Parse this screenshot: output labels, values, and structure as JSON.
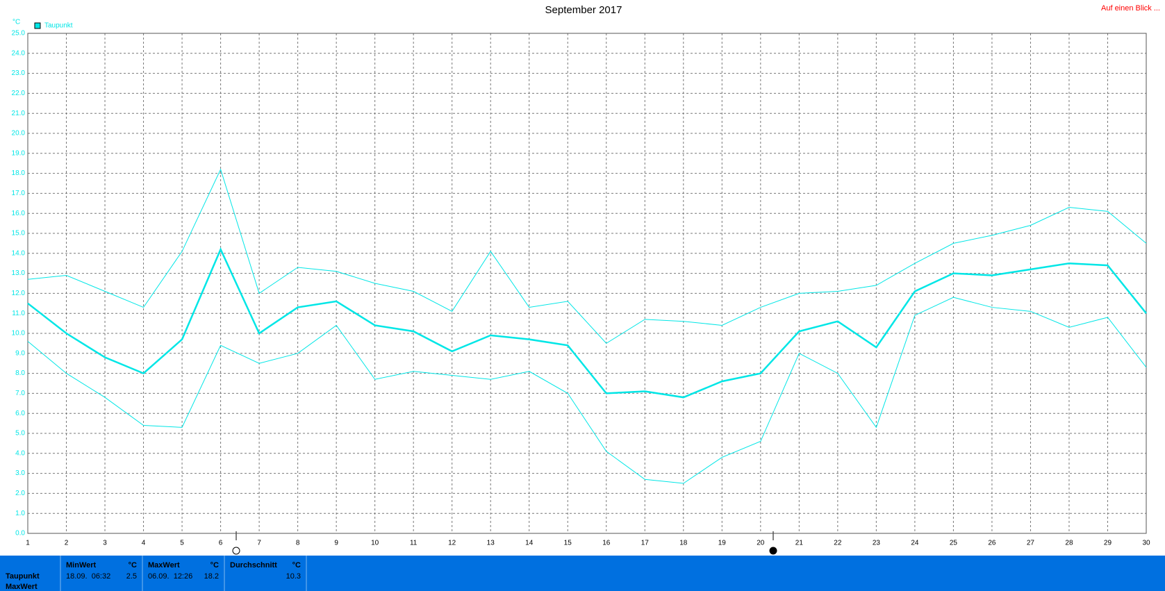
{
  "chart_data": {
    "type": "line",
    "title": "September 2017",
    "y_unit": "°C",
    "link": "Auf einen Blick ...",
    "x": [
      1,
      2,
      3,
      4,
      5,
      6,
      7,
      8,
      9,
      10,
      11,
      12,
      13,
      14,
      15,
      16,
      17,
      18,
      19,
      20,
      21,
      22,
      23,
      24,
      25,
      26,
      27,
      28,
      29,
      30
    ],
    "xlim": [
      1,
      30
    ],
    "xticks": [
      1,
      2,
      3,
      4,
      5,
      6,
      7,
      8,
      9,
      10,
      11,
      12,
      13,
      14,
      15,
      16,
      17,
      18,
      19,
      20,
      21,
      22,
      23,
      24,
      25,
      26,
      27,
      28,
      29,
      30
    ],
    "ylim": [
      0,
      25
    ],
    "yticks": [
      {
        "value": 0,
        "label": "0.0"
      },
      {
        "value": 1,
        "label": "1.0"
      },
      {
        "value": 2,
        "label": "2.0"
      },
      {
        "value": 3,
        "label": "3.0"
      },
      {
        "value": 4,
        "label": "4.0"
      },
      {
        "value": 5,
        "label": "5.0"
      },
      {
        "value": 6,
        "label": "6.0"
      },
      {
        "value": 7,
        "label": "7.0"
      },
      {
        "value": 8,
        "label": "8.0"
      },
      {
        "value": 9,
        "label": "9.0"
      },
      {
        "value": 10,
        "label": "10.0"
      },
      {
        "value": 11,
        "label": "11.0"
      },
      {
        "value": 12,
        "label": "12.0"
      },
      {
        "value": 13,
        "label": "13.0"
      },
      {
        "value": 14,
        "label": "14.0"
      },
      {
        "value": 15,
        "label": "15.0"
      },
      {
        "value": 16,
        "label": "16.0"
      },
      {
        "value": 17,
        "label": "17.0"
      },
      {
        "value": 18,
        "label": "18.0"
      },
      {
        "value": 19,
        "label": "19.0"
      },
      {
        "value": 20,
        "label": "20.0"
      },
      {
        "value": 21,
        "label": "21.0"
      },
      {
        "value": 22,
        "label": "22.0"
      },
      {
        "value": 23,
        "label": "23.0"
      },
      {
        "value": 24,
        "label": "24.0"
      },
      {
        "value": 25,
        "label": "25.0"
      }
    ],
    "grid": true,
    "series": [
      {
        "name": "Taupunkt",
        "color": "#00e6e6",
        "width": 2.5,
        "values": [
          11.5,
          10.0,
          8.8,
          8.0,
          9.7,
          14.2,
          10.0,
          11.3,
          11.6,
          10.4,
          10.1,
          9.1,
          9.9,
          9.7,
          9.4,
          7.0,
          7.1,
          6.8,
          7.6,
          8.0,
          10.1,
          10.6,
          9.3,
          12.1,
          13.0,
          12.9,
          13.2,
          13.5,
          13.4,
          11.0
        ]
      },
      {
        "color": "#00e6e6",
        "width": 1,
        "values": [
          12.7,
          12.9,
          12.1,
          11.3,
          14.1,
          18.2,
          12.0,
          13.3,
          13.1,
          12.5,
          12.1,
          11.1,
          14.1,
          11.3,
          11.6,
          9.5,
          10.7,
          10.6,
          10.4,
          11.3,
          12.0,
          12.1,
          12.4,
          13.5,
          14.5,
          14.9,
          15.4,
          16.3,
          16.1,
          14.5
        ]
      },
      {
        "color": "#00e6e6",
        "width": 1,
        "values": [
          9.6,
          8.0,
          6.8,
          5.4,
          5.3,
          9.4,
          8.5,
          9.0,
          10.4,
          7.7,
          8.1,
          7.9,
          7.7,
          8.1,
          7.0,
          4.1,
          2.7,
          2.5,
          3.8,
          4.6,
          9.0,
          8.0,
          5.3,
          10.9,
          11.8,
          11.3,
          11.1,
          10.3,
          10.8,
          8.3
        ]
      }
    ]
  },
  "summary": {
    "row_labels": [
      "Taupunkt",
      "MaxWert"
    ],
    "columns": [
      {
        "header": "MinWert",
        "unit": "°C",
        "time": "18.09.  06:32",
        "value": 2.5
      },
      {
        "header": "MaxWert",
        "unit": "°C",
        "time": "06.09.  12:26",
        "value": 18.2
      },
      {
        "header": "Durchschnitt",
        "unit": "°C",
        "value": 10.3
      }
    ]
  }
}
